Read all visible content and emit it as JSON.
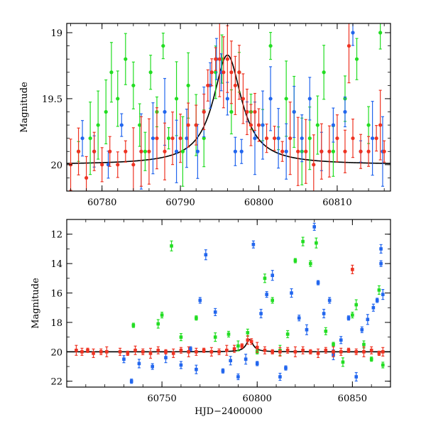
{
  "chart_data": [
    {
      "type": "scatter",
      "panel": "top",
      "ylabel": "Magnitude",
      "xlim": [
        60775.5,
        60816.8
      ],
      "ylim": [
        20.2,
        18.93
      ],
      "y_inverted": true,
      "x_ticks": [
        "60780",
        "60790",
        "60800",
        "60810"
      ],
      "y_ticks": [
        "19",
        "19.5",
        "20"
      ],
      "series": [
        {
          "color": "#22dd22",
          "points": [
            [
              60777.0,
              19.9
            ],
            [
              60778.5,
              19.8
            ],
            [
              60779.5,
              19.7
            ],
            [
              60780.5,
              19.6
            ],
            [
              60781.2,
              19.3
            ],
            [
              60782.0,
              19.5
            ],
            [
              60783.0,
              19.2
            ],
            [
              60784.0,
              19.4
            ],
            [
              60784.8,
              19.7
            ],
            [
              60785.5,
              19.9
            ],
            [
              60786.2,
              19.3
            ],
            [
              60787.0,
              19.6
            ],
            [
              60787.8,
              19.1
            ],
            [
              60788.5,
              19.8
            ],
            [
              60789.5,
              19.5
            ],
            [
              60790.3,
              19.9
            ],
            [
              60791.0,
              19.4
            ],
            [
              60792.0,
              19.7
            ],
            [
              60793.0,
              19.8
            ],
            [
              60794.5,
              19.3
            ],
            [
              60795.3,
              19.2
            ],
            [
              60796.5,
              19.6
            ],
            [
              60797.5,
              19.3
            ],
            [
              60799.0,
              19.6
            ],
            [
              60800.5,
              19.7
            ],
            [
              60801.5,
              19.1
            ],
            [
              60802.5,
              19.8
            ],
            [
              60803.5,
              19.5
            ],
            [
              60804.5,
              19.6
            ],
            [
              60805.5,
              19.9
            ],
            [
              60806.5,
              19.8
            ],
            [
              60807.5,
              19.7
            ],
            [
              60808.3,
              19.3
            ],
            [
              60809.5,
              19.9
            ],
            [
              60811.0,
              19.5
            ],
            [
              60812.5,
              19.2
            ],
            [
              60814.0,
              19.7
            ],
            [
              60815.5,
              19.0
            ]
          ]
        },
        {
          "color": "#2266ee",
          "points": [
            [
              60777.5,
              19.8
            ],
            [
              60779.0,
              19.9
            ],
            [
              60780.8,
              20.0
            ],
            [
              60782.5,
              19.7
            ],
            [
              60785.0,
              19.9
            ],
            [
              60786.5,
              19.8
            ],
            [
              60788.0,
              19.6
            ],
            [
              60789.5,
              19.9
            ],
            [
              60790.8,
              19.8
            ],
            [
              60792.2,
              19.9
            ],
            [
              60793.0,
              19.6
            ],
            [
              60793.8,
              19.4
            ],
            [
              60794.6,
              19.2
            ],
            [
              60795.2,
              19.3
            ],
            [
              60796.0,
              19.5
            ],
            [
              60797.0,
              19.9
            ],
            [
              60797.8,
              19.9
            ],
            [
              60798.5,
              19.6
            ],
            [
              60799.5,
              19.8
            ],
            [
              60800.5,
              19.7
            ],
            [
              60801.5,
              19.5
            ],
            [
              60802.5,
              19.8
            ],
            [
              60803.5,
              19.9
            ],
            [
              60804.5,
              19.6
            ],
            [
              60805.5,
              19.8
            ],
            [
              60806.5,
              19.5
            ],
            [
              60808.0,
              19.9
            ],
            [
              60809.5,
              19.7
            ],
            [
              60811.0,
              19.6
            ],
            [
              60812.0,
              19.0
            ],
            [
              60813.0,
              19.9
            ],
            [
              60814.5,
              19.8
            ],
            [
              60815.8,
              19.9
            ]
          ]
        },
        {
          "color": "#ee3322",
          "points": [
            [
              60776.0,
              20.0
            ],
            [
              60777.0,
              19.9
            ],
            [
              60778.0,
              20.1
            ],
            [
              60779.0,
              19.9
            ],
            [
              60780.0,
              20.0
            ],
            [
              60781.0,
              19.9
            ],
            [
              60782.0,
              20.0
            ],
            [
              60783.0,
              19.9
            ],
            [
              60784.0,
              20.0
            ],
            [
              60785.0,
              19.9
            ],
            [
              60786.0,
              19.9
            ],
            [
              60787.0,
              19.8
            ],
            [
              60788.0,
              19.9
            ],
            [
              60789.0,
              19.8
            ],
            [
              60790.0,
              19.8
            ],
            [
              60791.0,
              19.7
            ],
            [
              60792.0,
              19.7
            ],
            [
              60793.0,
              19.6
            ],
            [
              60793.5,
              19.4
            ],
            [
              60794.0,
              19.3
            ],
            [
              60794.5,
              19.2
            ],
            [
              60795.0,
              19.2
            ],
            [
              60795.5,
              19.3
            ],
            [
              60796.0,
              19.2
            ],
            [
              60796.5,
              19.3
            ],
            [
              60797.0,
              19.4
            ],
            [
              60797.5,
              19.3
            ],
            [
              60798.0,
              19.5
            ],
            [
              60798.5,
              19.6
            ],
            [
              60799.0,
              19.7
            ],
            [
              60799.5,
              19.6
            ],
            [
              60800.0,
              19.7
            ],
            [
              60801.0,
              19.8
            ],
            [
              60802.0,
              19.8
            ],
            [
              60803.0,
              19.9
            ],
            [
              60804.0,
              19.8
            ],
            [
              60805.0,
              19.9
            ],
            [
              60806.0,
              19.9
            ],
            [
              60807.0,
              20.0
            ],
            [
              60808.0,
              19.9
            ],
            [
              60809.0,
              19.9
            ],
            [
              60810.0,
              19.8
            ],
            [
              60811.0,
              19.9
            ],
            [
              60812.0,
              19.8
            ],
            [
              60813.0,
              19.9
            ],
            [
              60814.0,
              19.9
            ],
            [
              60815.0,
              19.8
            ],
            [
              60816.0,
              19.9
            ],
            [
              60811.5,
              19.1
            ],
            [
              60815.5,
              19.7
            ]
          ]
        }
      ],
      "model_curve": {
        "color": "#000000",
        "type": "lorentzian",
        "peak_x": 60796.0,
        "peak_mag": 19.17,
        "baseline_mag": 20.0,
        "width": 2.2
      }
    },
    {
      "type": "scatter",
      "panel": "bottom",
      "xlabel": "HJD−2400000",
      "ylabel": "Magnitude",
      "xlim": [
        60700.0,
        60870.0
      ],
      "ylim": [
        22.4,
        11.0
      ],
      "y_inverted": true,
      "x_ticks": [
        "60750",
        "60800",
        "60850"
      ],
      "y_ticks": [
        "12",
        "14",
        "16",
        "18",
        "20",
        "22"
      ],
      "series": [
        {
          "color": "#22dd22",
          "points": [
            [
              60735,
              18.2
            ],
            [
              60748,
              18.1
            ],
            [
              60750,
              17.5
            ],
            [
              60755,
              12.8
            ],
            [
              60760,
              19.0
            ],
            [
              60768,
              17.7
            ],
            [
              60778,
              19.0
            ],
            [
              60785,
              18.8
            ],
            [
              60790,
              19.6
            ],
            [
              60795,
              18.7
            ],
            [
              60800,
              20.0
            ],
            [
              60804,
              15.0
            ],
            [
              60808,
              16.5
            ],
            [
              60812,
              19.9
            ],
            [
              60816,
              18.8
            ],
            [
              60820,
              13.8
            ],
            [
              60824,
              12.5
            ],
            [
              60828,
              14.0
            ],
            [
              60831,
              12.6
            ],
            [
              60836,
              18.6
            ],
            [
              60840,
              19.5
            ],
            [
              60845,
              20.7
            ],
            [
              60850,
              17.5
            ],
            [
              60852,
              16.8
            ],
            [
              60856,
              19.5
            ],
            [
              60860,
              20.5
            ],
            [
              60864,
              15.8
            ],
            [
              60866,
              20.9
            ]
          ]
        },
        {
          "color": "#2266ee",
          "points": [
            [
              60730,
              20.5
            ],
            [
              60734,
              22.0
            ],
            [
              60738,
              20.8
            ],
            [
              60745,
              21.0
            ],
            [
              60752,
              20.4
            ],
            [
              60760,
              20.9
            ],
            [
              60765,
              19.8
            ],
            [
              60768,
              21.2
            ],
            [
              60770,
              16.5
            ],
            [
              60773,
              13.4
            ],
            [
              60778,
              17.3
            ],
            [
              60782,
              21.3
            ],
            [
              60786,
              20.6
            ],
            [
              60790,
              21.7
            ],
            [
              60794,
              20.5
            ],
            [
              60798,
              12.7
            ],
            [
              60800,
              20.8
            ],
            [
              60802,
              17.4
            ],
            [
              60805,
              16.1
            ],
            [
              60808,
              14.8
            ],
            [
              60812,
              21.7
            ],
            [
              60815,
              21.1
            ],
            [
              60818,
              16.0
            ],
            [
              60822,
              17.7
            ],
            [
              60826,
              18.5
            ],
            [
              60830,
              11.5
            ],
            [
              60832,
              15.3
            ],
            [
              60835,
              17.4
            ],
            [
              60838,
              16.5
            ],
            [
              60840,
              20.2
            ],
            [
              60844,
              19.2
            ],
            [
              60848,
              17.7
            ],
            [
              60852,
              21.7
            ],
            [
              60855,
              18.5
            ],
            [
              60858,
              17.8
            ],
            [
              60861,
              17.0
            ],
            [
              60863,
              16.5
            ],
            [
              60865,
              13.0
            ],
            [
              60865,
              14.0
            ],
            [
              60866,
              16.1
            ]
          ]
        },
        {
          "color": "#ee3322",
          "points": [
            [
              60705,
              19.9
            ],
            [
              60708,
              20.0
            ],
            [
              60711,
              19.9
            ],
            [
              60714,
              20.1
            ],
            [
              60718,
              20.0
            ],
            [
              60721,
              20.0
            ],
            [
              60728,
              20.0
            ],
            [
              60732,
              20.1
            ],
            [
              60736,
              19.9
            ],
            [
              60740,
              20.0
            ],
            [
              60744,
              20.1
            ],
            [
              60748,
              19.9
            ],
            [
              60752,
              20.0
            ],
            [
              60756,
              20.1
            ],
            [
              60760,
              19.9
            ],
            [
              60764,
              20.0
            ],
            [
              60768,
              20.0
            ],
            [
              60772,
              19.9
            ],
            [
              60776,
              20.0
            ],
            [
              60780,
              20.0
            ],
            [
              60784,
              19.9
            ],
            [
              60788,
              19.8
            ],
            [
              60792,
              19.6
            ],
            [
              60795,
              19.2
            ],
            [
              60797,
              19.3
            ],
            [
              60800,
              19.7
            ],
            [
              60804,
              19.9
            ],
            [
              60808,
              20.0
            ],
            [
              60812,
              20.0
            ],
            [
              60816,
              19.9
            ],
            [
              60820,
              20.0
            ],
            [
              60824,
              19.9
            ],
            [
              60828,
              20.0
            ],
            [
              60832,
              20.1
            ],
            [
              60836,
              19.9
            ],
            [
              60840,
              20.0
            ],
            [
              60844,
              20.0
            ],
            [
              60848,
              19.9
            ],
            [
              60850,
              14.4
            ],
            [
              60852,
              20.0
            ],
            [
              60856,
              20.0
            ],
            [
              60860,
              19.9
            ],
            [
              60864,
              20.1
            ],
            [
              60866,
              20.0
            ]
          ]
        }
      ],
      "model_curve": {
        "color": "#000000",
        "type": "lorentzian",
        "peak_x": 60796.0,
        "peak_mag": 19.17,
        "baseline_mag": 20.0,
        "width": 2.2
      }
    }
  ]
}
